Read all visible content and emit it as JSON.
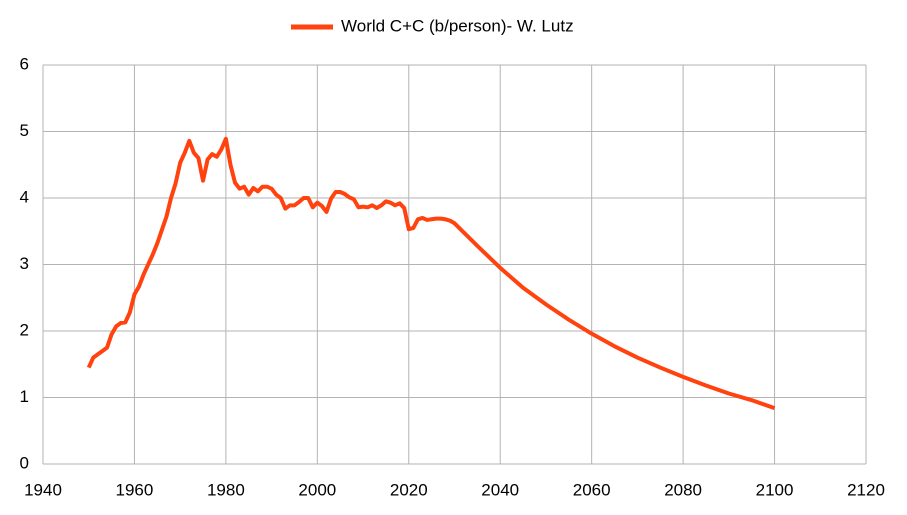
{
  "chart_data": {
    "type": "line",
    "x": [
      1950,
      1951,
      1952,
      1953,
      1954,
      1955,
      1956,
      1957,
      1958,
      1959,
      1960,
      1961,
      1962,
      1963,
      1964,
      1965,
      1966,
      1967,
      1968,
      1969,
      1970,
      1971,
      1972,
      1973,
      1974,
      1975,
      1976,
      1977,
      1978,
      1979,
      1980,
      1981,
      1982,
      1983,
      1984,
      1985,
      1986,
      1987,
      1988,
      1989,
      1990,
      1991,
      1992,
      1993,
      1994,
      1995,
      1996,
      1997,
      1998,
      1999,
      2000,
      2001,
      2002,
      2003,
      2004,
      2005,
      2006,
      2007,
      2008,
      2009,
      2010,
      2011,
      2012,
      2013,
      2014,
      2015,
      2016,
      2017,
      2018,
      2019,
      2020,
      2021,
      2022,
      2023,
      2024,
      2025,
      2026,
      2027,
      2028,
      2029,
      2030,
      2035,
      2040,
      2045,
      2050,
      2055,
      2060,
      2065,
      2070,
      2075,
      2080,
      2085,
      2090,
      2095,
      2100
    ],
    "series": [
      {
        "name": "World C+C (b/person)- W. Lutz",
        "color": "#ff420e",
        "values": [
          1.45,
          1.6,
          1.65,
          1.7,
          1.75,
          1.95,
          2.07,
          2.12,
          2.13,
          2.28,
          2.55,
          2.67,
          2.85,
          3.0,
          3.15,
          3.32,
          3.52,
          3.72,
          4.0,
          4.22,
          4.53,
          4.68,
          4.86,
          4.68,
          4.6,
          4.26,
          4.58,
          4.66,
          4.62,
          4.73,
          4.89,
          4.5,
          4.23,
          4.14,
          4.17,
          4.05,
          4.15,
          4.1,
          4.17,
          4.17,
          4.14,
          4.05,
          4.0,
          3.84,
          3.89,
          3.89,
          3.94,
          4.0,
          4.0,
          3.86,
          3.93,
          3.88,
          3.79,
          3.99,
          4.09,
          4.09,
          4.06,
          4.01,
          3.98,
          3.86,
          3.87,
          3.86,
          3.89,
          3.85,
          3.89,
          3.95,
          3.93,
          3.89,
          3.92,
          3.85,
          3.53,
          3.55,
          3.68,
          3.7,
          3.67,
          3.68,
          3.69,
          3.69,
          3.68,
          3.66,
          3.62,
          3.28,
          2.95,
          2.65,
          2.4,
          2.17,
          1.96,
          1.77,
          1.6,
          1.45,
          1.31,
          1.18,
          1.06,
          0.96,
          0.84
        ]
      }
    ],
    "xlim": [
      1940,
      2120
    ],
    "xticks": [
      1940,
      1960,
      1980,
      2000,
      2020,
      2040,
      2060,
      2080,
      2100,
      2120
    ],
    "ylim": [
      0,
      6
    ],
    "yticks": [
      0,
      1,
      2,
      3,
      4,
      5,
      6
    ],
    "grid": true,
    "legend": "top"
  }
}
